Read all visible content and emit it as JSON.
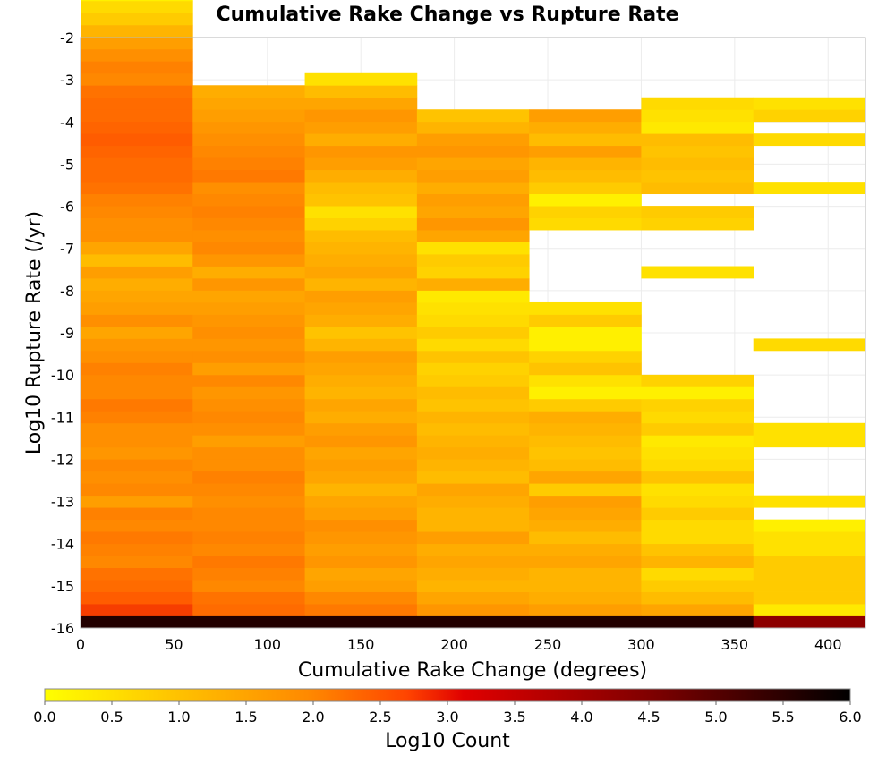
{
  "chart_data": {
    "type": "heatmap",
    "title": "Cumulative Rake Change vs Rupture Rate",
    "xlabel": "Cumulative Rake Change (degrees)",
    "ylabel": "Log10 Rupture Rate (/yr)",
    "colorbar_label": "Log10 Count",
    "xlim": [
      0,
      420
    ],
    "ylim": [
      -16,
      -2
    ],
    "x_ticks": [
      0,
      50,
      100,
      150,
      200,
      250,
      300,
      350,
      400
    ],
    "y_ticks": [
      -2,
      -3,
      -4,
      -5,
      -6,
      -7,
      -8,
      -9,
      -10,
      -11,
      -12,
      -13,
      -14,
      -15,
      -16
    ],
    "colorbar_ticks": [
      "0.0",
      "0.5",
      "1.0",
      "1.5",
      "2.0",
      "2.5",
      "3.0",
      "3.5",
      "4.0",
      "4.5",
      "5.0",
      "5.5",
      "6.0"
    ],
    "colorscale": {
      "min": 0,
      "max": 6,
      "stops": [
        "#ffff00",
        "#ffa500",
        "#ff5500",
        "#e00000",
        "#800000",
        "#000000"
      ]
    },
    "x_bin_width": 60,
    "y_bin_height": 0.286,
    "x_bins": [
      {
        "x_start": 0,
        "y_start": -16,
        "values": [
          5.6,
          2.5,
          2.2,
          2.0,
          1.9,
          1.6,
          1.7,
          1.8,
          1.6,
          1.7,
          1.3,
          1.6,
          1.5,
          1.6,
          1.4,
          1.5,
          1.5,
          1.7,
          1.8,
          1.6,
          1.6,
          1.7,
          1.5,
          1.4,
          1.2,
          1.5,
          1.3,
          1.2,
          1.1,
          1.3,
          0.9,
          1.2,
          1.5,
          1.5,
          1.6,
          1.7,
          1.9,
          2.0,
          2.0,
          2.1,
          2.2,
          2.1,
          2.0,
          2.0,
          1.9,
          1.6,
          1.7,
          1.5,
          1.3,
          1.0,
          0.7,
          0.5,
          0.2
        ]
      },
      {
        "x_start": 60,
        "y_start": -16,
        "values": [
          5.6,
          2.0,
          1.9,
          1.6,
          1.7,
          1.8,
          1.6,
          1.7,
          1.6,
          1.6,
          1.5,
          1.6,
          1.7,
          1.5,
          1.5,
          1.3,
          1.5,
          1.6,
          1.5,
          1.4,
          1.6,
          1.3,
          1.5,
          1.4,
          1.5,
          1.4,
          1.3,
          1.2,
          1.4,
          1.1,
          1.4,
          1.6,
          1.5,
          1.6,
          1.7,
          1.6,
          1.5,
          1.8,
          1.7,
          1.6,
          1.5,
          1.4,
          1.3,
          1.2,
          1.1
        ]
      },
      {
        "x_start": 120,
        "y_start": -16,
        "values": [
          5.6,
          1.8,
          1.6,
          1.3,
          1.2,
          1.4,
          1.3,
          1.4,
          1.5,
          1.3,
          1.2,
          1.0,
          1.2,
          1.3,
          1.2,
          1.4,
          1.3,
          1.1,
          1.2,
          1.0,
          1.1,
          1.2,
          1.3,
          1.0,
          0.8,
          1.1,
          1.2,
          1.3,
          1.0,
          1.2,
          1.1,
          1.0,
          0.9,
          0.6,
          0.4,
          0.8,
          0.9,
          1.1,
          1.3,
          1.4,
          1.1,
          1.3,
          1.4,
          1.2,
          0.9,
          0.4
        ]
      },
      {
        "x_start": 180,
        "y_start": -16,
        "values": [
          5.6,
          1.4,
          1.2,
          1.0,
          1.1,
          1.2,
          1.1,
          1.3,
          1.0,
          1.0,
          1.1,
          1.2,
          0.9,
          1.0,
          1.1,
          1.0,
          0.9,
          1.0,
          0.8,
          0.9,
          0.7,
          0.6,
          0.8,
          0.5,
          0.7,
          0.5,
          0.4,
          0.3,
          1.1,
          0.6,
          0.7,
          0.4,
          1.2,
          1.4,
          1.2,
          1.3,
          1.1,
          1.3,
          1.2,
          1.4,
          1.3,
          1.0,
          0.8
        ]
      },
      {
        "x_start": 240,
        "y_start": -16,
        "values": [
          5.6,
          1.3,
          1.1,
          1.0,
          1.0,
          1.2,
          1.1,
          0.9,
          1.1,
          1.2,
          1.3,
          0.7,
          1.2,
          0.9,
          0.8,
          0.9,
          1.0,
          1.1,
          0.7,
          0.2,
          0.4,
          0.8,
          0.6,
          0.2,
          0.2,
          0.7,
          0.4,
          null,
          null,
          null,
          null,
          null,
          null,
          0.5,
          0.6,
          0.2,
          0.7,
          0.9,
          1.0,
          1.3,
          0.9,
          1.1,
          1.3
        ]
      },
      {
        "x_start": 300,
        "y_start": -16,
        "values": [
          5.6,
          1.2,
          0.9,
          0.7,
          0.5,
          1.0,
          0.8,
          0.5,
          0.5,
          0.7,
          0.5,
          0.4,
          0.8,
          0.5,
          0.4,
          0.3,
          0.7,
          0.5,
          0.6,
          0.2,
          0.6,
          null,
          null,
          null,
          null,
          null,
          null,
          null,
          null,
          0.4,
          null,
          null,
          null,
          0.6,
          0.7,
          null,
          0.9,
          0.8,
          0.9,
          0.8,
          0.9,
          0.3,
          0.4,
          0.5
        ]
      },
      {
        "x_start": 360,
        "y_start": -16,
        "values": [
          4.3,
          0.3,
          0.7,
          0.7,
          0.7,
          0.7,
          0.4,
          0.4,
          0.2,
          null,
          0.4,
          null,
          null,
          null,
          null,
          0.4,
          0.4,
          null,
          null,
          null,
          null,
          null,
          null,
          0.5,
          null,
          null,
          null,
          null,
          null,
          null,
          null,
          null,
          null,
          null,
          null,
          null,
          0.4,
          null,
          null,
          null,
          0.5,
          null,
          0.6,
          0.4
        ]
      }
    ]
  }
}
